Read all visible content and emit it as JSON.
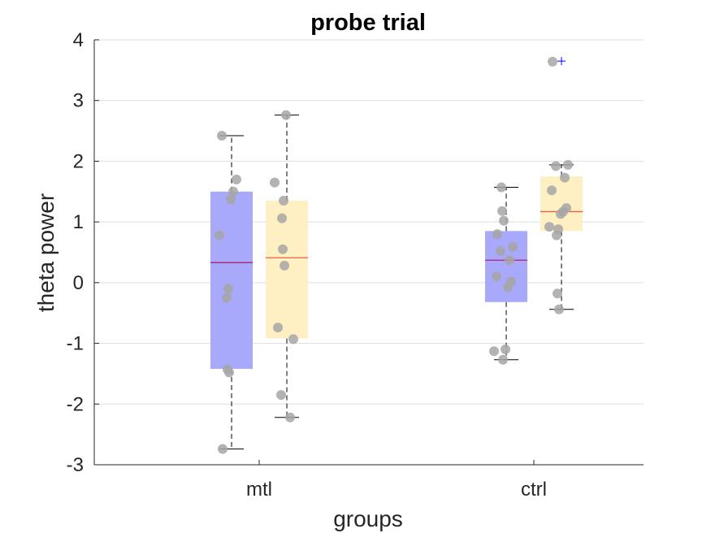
{
  "chart_data": {
    "type": "box",
    "title": "probe trial",
    "xlabel": "groups",
    "ylabel": "theta power",
    "ylim": [
      -3,
      4
    ],
    "yticks": [
      -3,
      -2,
      -1,
      0,
      1,
      2,
      3,
      4
    ],
    "grid": "horizontal",
    "categories": [
      "mtl",
      "ctrl"
    ],
    "colors": {
      "box_a": "#a9a9fb",
      "box_b": "#fff0c4",
      "median_a": "#b0246e",
      "median_b": "#e8623f",
      "point": "#a6a6a6",
      "outlier": "#0000ff",
      "whisker": "#000000",
      "grid": "#dedede"
    },
    "boxes": [
      {
        "category": "mtl",
        "variant": "a",
        "q1": -1.42,
        "median": 0.33,
        "q3": 1.5,
        "whisker_low": -2.74,
        "whisker_high": 2.42,
        "outliers": [],
        "points": [
          2.42,
          1.7,
          1.5,
          1.37,
          0.78,
          -0.1,
          -0.25,
          -1.43,
          -1.48,
          -2.74
        ]
      },
      {
        "category": "mtl",
        "variant": "b",
        "q1": -0.92,
        "median": 0.41,
        "q3": 1.35,
        "whisker_low": -2.22,
        "whisker_high": 2.76,
        "outliers": [],
        "points": [
          2.76,
          1.65,
          1.35,
          1.06,
          0.55,
          0.28,
          -0.74,
          -0.93,
          -1.85,
          -2.22
        ]
      },
      {
        "category": "ctrl",
        "variant": "a",
        "q1": -0.32,
        "median": 0.37,
        "q3": 0.85,
        "whisker_low": -1.27,
        "whisker_high": 1.57,
        "outliers": [],
        "points": [
          1.57,
          1.18,
          1.02,
          0.8,
          0.59,
          0.52,
          0.37,
          0.1,
          0.02,
          -0.08,
          -1.1,
          -1.13,
          -1.27
        ]
      },
      {
        "category": "ctrl",
        "variant": "b",
        "q1": 0.85,
        "median": 1.17,
        "q3": 1.75,
        "whisker_low": -0.44,
        "whisker_high": 1.94,
        "outliers": [
          3.65
        ],
        "points": [
          3.64,
          1.94,
          1.92,
          1.73,
          1.52,
          1.23,
          1.17,
          1.13,
          0.92,
          0.88,
          0.78,
          -0.18,
          -0.44
        ]
      }
    ]
  }
}
